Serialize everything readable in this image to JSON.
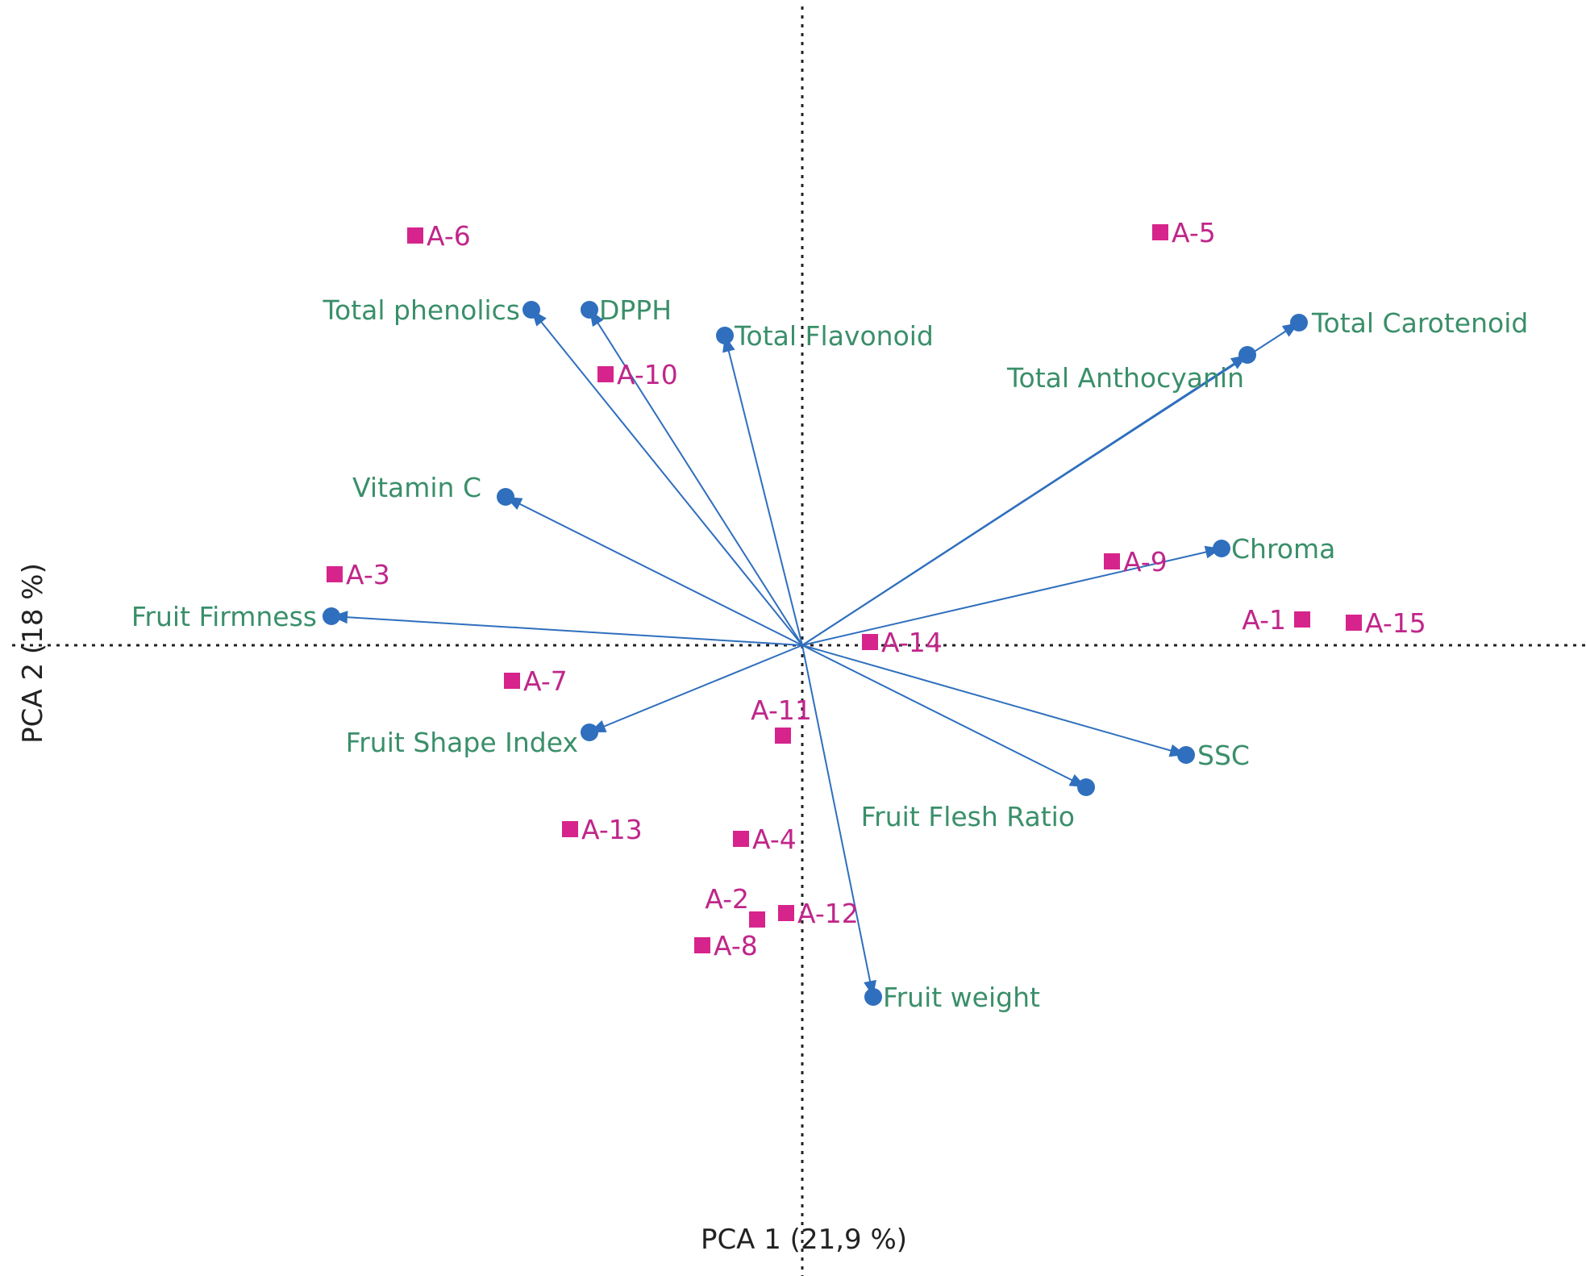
{
  "chart_data": {
    "type": "scatter",
    "subtype": "pca-biplot",
    "xlabel": "PCA 1  (21,9 %)",
    "ylabel": "PCA 2  (18 %)",
    "xlim": [
      -2.45,
      2.48
    ],
    "ylim": [
      -1.98,
      1.98
    ],
    "grid": false,
    "colors": {
      "variables": "#2f6fbd",
      "observations": "#d6248c",
      "var_text": "#3a8f6a",
      "obs_text": "#c0268a",
      "axis": "#222222"
    },
    "variables": [
      {
        "name": "Total phenolics",
        "x": -0.84,
        "y": 1.04
      },
      {
        "name": "DPPH",
        "x": -0.66,
        "y": 1.04
      },
      {
        "name": "Total Flavonoid",
        "x": -0.24,
        "y": 0.96
      },
      {
        "name": "Total Carotenoid",
        "x": 1.54,
        "y": 1.0
      },
      {
        "name": "Total Anthocyanin",
        "x": 1.38,
        "y": 0.9
      },
      {
        "name": "Vitamin C",
        "x": -0.92,
        "y": 0.46
      },
      {
        "name": "Chroma",
        "x": 1.3,
        "y": 0.3
      },
      {
        "name": "Fruit Firmness",
        "x": -1.46,
        "y": 0.09
      },
      {
        "name": "Fruit Shape Index",
        "x": -0.66,
        "y": -0.27
      },
      {
        "name": "SSC",
        "x": 1.19,
        "y": -0.34
      },
      {
        "name": "Fruit Flesh Ratio",
        "x": 0.88,
        "y": -0.44
      },
      {
        "name": "Fruit weight",
        "x": 0.22,
        "y": -1.09
      }
    ],
    "observations": [
      {
        "name": "A-6",
        "x": -1.2,
        "y": 1.27
      },
      {
        "name": "A-5",
        "x": 1.11,
        "y": 1.28
      },
      {
        "name": "A-10",
        "x": -0.61,
        "y": 0.84
      },
      {
        "name": "A-3",
        "x": -1.45,
        "y": 0.22
      },
      {
        "name": "A-9",
        "x": 0.96,
        "y": 0.26
      },
      {
        "name": "A-1",
        "x": 1.55,
        "y": 0.08
      },
      {
        "name": "A-15",
        "x": 1.71,
        "y": 0.07
      },
      {
        "name": "A-14",
        "x": 0.21,
        "y": 0.01
      },
      {
        "name": "A-7",
        "x": -0.9,
        "y": -0.11
      },
      {
        "name": "A-11",
        "x": -0.06,
        "y": -0.28
      },
      {
        "name": "A-13",
        "x": -0.72,
        "y": -0.57
      },
      {
        "name": "A-4",
        "x": -0.19,
        "y": -0.6
      },
      {
        "name": "A-12",
        "x": -0.05,
        "y": -0.83
      },
      {
        "name": "A-2",
        "x": -0.14,
        "y": -0.85
      },
      {
        "name": "A-8",
        "x": -0.31,
        "y": -0.93
      }
    ]
  }
}
